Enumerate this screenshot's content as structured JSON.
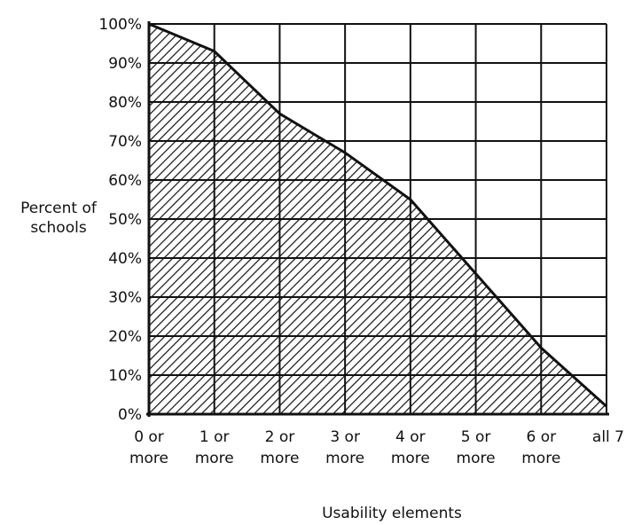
{
  "chart_data": {
    "type": "area",
    "xlabel": "Usability elements",
    "ylabel": [
      "Percent of",
      "schools"
    ],
    "categories": [
      [
        "0 or",
        "more"
      ],
      [
        "1 or",
        "more"
      ],
      [
        "2 or",
        "more"
      ],
      [
        "3 or",
        "more"
      ],
      [
        "4 or",
        "more"
      ],
      [
        "5 or",
        "more"
      ],
      [
        "6 or",
        "more"
      ],
      [
        "all 7"
      ]
    ],
    "y_tick_labels": [
      "0%",
      "10%",
      "20%",
      "30%",
      "40%",
      "50%",
      "60%",
      "70%",
      "80%",
      "90%",
      "100%"
    ],
    "series": [
      {
        "values": [
          100,
          93,
          77,
          67,
          55,
          36,
          17,
          2
        ]
      }
    ],
    "ylim": [
      0,
      100
    ],
    "grid": true,
    "fill": "diagonal-hatch",
    "legend": "none"
  }
}
